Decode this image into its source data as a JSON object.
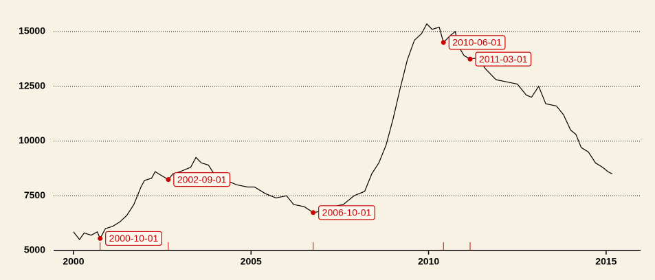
{
  "chart_data": {
    "type": "line",
    "color": "#000000",
    "x": [
      2000.0,
      2000.17,
      2000.3,
      2000.5,
      2000.67,
      2000.75,
      2000.9,
      2001.1,
      2001.3,
      2001.5,
      2001.7,
      2001.9,
      2002.0,
      2002.2,
      2002.3,
      2002.5,
      2002.67,
      2002.8,
      2003.0,
      2003.3,
      2003.45,
      2003.6,
      2003.8,
      2004.0,
      2004.3,
      2004.6,
      2004.9,
      2005.1,
      2005.4,
      2005.7,
      2006.0,
      2006.2,
      2006.5,
      2006.75,
      2007.0,
      2007.3,
      2007.6,
      2007.9,
      2008.2,
      2008.4,
      2008.6,
      2008.8,
      2009.0,
      2009.2,
      2009.4,
      2009.6,
      2009.8,
      2009.95,
      2010.1,
      2010.3,
      2010.42,
      2010.6,
      2010.75,
      2010.85,
      2011.0,
      2011.17,
      2011.4,
      2011.6,
      2011.9,
      2012.2,
      2012.5,
      2012.75,
      2012.9,
      2013.1,
      2013.3,
      2013.6,
      2013.8,
      2014.0,
      2014.15,
      2014.3,
      2014.5,
      2014.7,
      2014.9,
      2015.05,
      2015.17
    ],
    "values": [
      5850,
      5500,
      5800,
      5700,
      5850,
      5550,
      6000,
      6100,
      6300,
      6600,
      7100,
      7900,
      8200,
      8300,
      8600,
      8400,
      8240,
      8500,
      8600,
      8800,
      9250,
      9000,
      8900,
      8400,
      8200,
      8000,
      7900,
      7900,
      7600,
      7400,
      7500,
      7100,
      7000,
      6730,
      6800,
      7000,
      7100,
      7500,
      7700,
      8500,
      9000,
      9800,
      11000,
      12400,
      13700,
      14600,
      14900,
      15350,
      15100,
      15200,
      14500,
      14800,
      15000,
      14300,
      13900,
      13740,
      13800,
      13300,
      12800,
      12700,
      12600,
      12100,
      12000,
      12500,
      11700,
      11600,
      11200,
      10500,
      10300,
      9700,
      9500,
      9000,
      8800,
      8600,
      8500
    ],
    "xlim": [
      1999.44,
      2015.97
    ],
    "ylim": [
      5000,
      15500
    ],
    "xticks": [
      2000,
      2005,
      2010,
      2015
    ],
    "yticks": [
      5000,
      7500,
      10000,
      12500,
      15000
    ],
    "grid": true,
    "annotations": [
      {
        "label": "2000-10-01",
        "x": 2000.75,
        "y": 5550
      },
      {
        "label": "2002-09-01",
        "x": 2002.67,
        "y": 8240
      },
      {
        "label": "2006-10-01",
        "x": 2006.75,
        "y": 6730
      },
      {
        "label": "2010-06-01",
        "x": 2010.42,
        "y": 14500
      },
      {
        "label": "2011-03-01",
        "x": 2011.17,
        "y": 13740
      }
    ],
    "annotation_color": "#cc0000"
  }
}
